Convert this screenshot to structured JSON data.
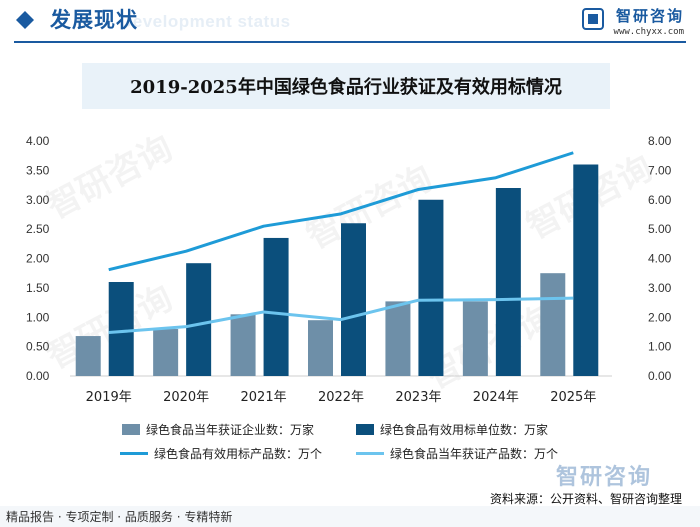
{
  "header": {
    "title": "发展现状",
    "subtitle_watermark": "Development status",
    "brand_name": "智研咨询",
    "brand_url": "www.chyxx.com",
    "accent_color": "#1a5aa0"
  },
  "watermark_text": "智研咨询",
  "chart_data": {
    "type": "bar+line",
    "title": "2019-2025年中国绿色食品行业获证及有效用标情况",
    "categories": [
      "2019年",
      "2020年",
      "2021年",
      "2022年",
      "2023年",
      "2024年",
      "2025年"
    ],
    "y_left": {
      "range": [
        0,
        4
      ],
      "ticks": [
        "0.00",
        "0.50",
        "1.00",
        "1.50",
        "2.00",
        "2.50",
        "3.00",
        "3.50",
        "4.00"
      ]
    },
    "y_right": {
      "range": [
        0,
        8
      ],
      "ticks": [
        "0.00",
        "1.00",
        "2.00",
        "3.00",
        "4.00",
        "5.00",
        "6.00",
        "7.00",
        "8.00"
      ]
    },
    "series": [
      {
        "name": "绿色食品当年获证企业数：万家",
        "kind": "bar",
        "axis": "left",
        "color": "#6e8fa8",
        "values": [
          0.68,
          0.8,
          1.05,
          0.95,
          1.27,
          1.27,
          1.75
        ]
      },
      {
        "name": "绿色食品有效用标单位数：万家",
        "kind": "bar",
        "axis": "left",
        "color": "#0b4f7c",
        "values": [
          1.6,
          1.92,
          2.35,
          2.6,
          3.0,
          3.2,
          3.6
        ]
      },
      {
        "name": "绿色食品有效用标产品数：万个",
        "kind": "line",
        "axis": "right",
        "color": "#1e9bd7",
        "values": [
          3.62,
          4.25,
          5.1,
          5.52,
          6.35,
          6.75,
          7.6
        ]
      },
      {
        "name": "绿色食品当年获证产品数：万个",
        "kind": "line",
        "axis": "right",
        "color": "#6cc4ee",
        "values": [
          1.48,
          1.68,
          2.18,
          1.92,
          2.58,
          2.6,
          2.65
        ]
      }
    ],
    "legend_position": "bottom"
  },
  "source_text": "资料来源：公开资料、智研咨询整理",
  "footer_text": "精品报告 · 专项定制 · 品质服务 · 专精特新"
}
